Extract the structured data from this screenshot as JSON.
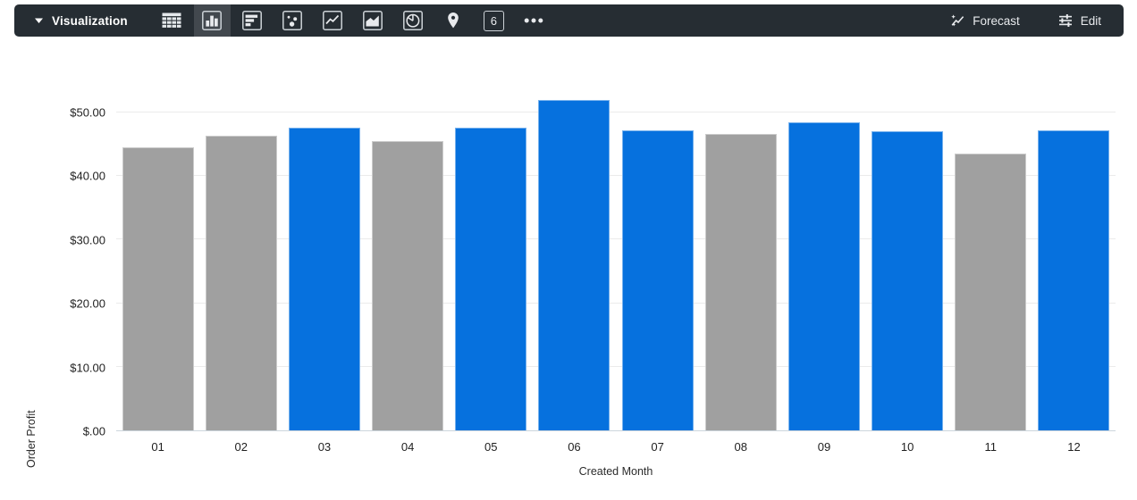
{
  "toolbar": {
    "title": "Visualization",
    "forecast_label": "Forecast",
    "edit_label": "Edit",
    "single_value_glyph": "6",
    "chart_types": [
      "table",
      "column",
      "bar",
      "scatter",
      "line",
      "area",
      "pie",
      "map",
      "single-value",
      "more"
    ],
    "selected_chart_type": "column",
    "colors": {
      "bg": "#262d33",
      "selected_bg": "#42484e",
      "text": "#ffffff"
    }
  },
  "chart_data": {
    "type": "bar",
    "title": "",
    "xlabel": "Created Month",
    "ylabel": "Order Profit",
    "categories": [
      "01",
      "02",
      "03",
      "04",
      "05",
      "06",
      "07",
      "08",
      "09",
      "10",
      "11",
      "12"
    ],
    "values": [
      44.5,
      46.4,
      47.6,
      45.5,
      47.6,
      51.9,
      47.2,
      46.6,
      48.4,
      47.1,
      43.6,
      47.2
    ],
    "bar_colors": [
      "gray",
      "gray",
      "blue",
      "gray",
      "blue",
      "blue",
      "blue",
      "gray",
      "blue",
      "blue",
      "gray",
      "blue"
    ],
    "palette": {
      "blue": "#0671de",
      "gray": "#a0a0a0"
    },
    "ylim": [
      0,
      53.5
    ],
    "yticks": {
      "values": [
        0,
        10,
        20,
        30,
        40,
        50
      ],
      "labels": [
        "$.00",
        "$10.00",
        "$20.00",
        "$30.00",
        "$40.00",
        "$50.00"
      ]
    },
    "grid": true,
    "legend": "none"
  }
}
